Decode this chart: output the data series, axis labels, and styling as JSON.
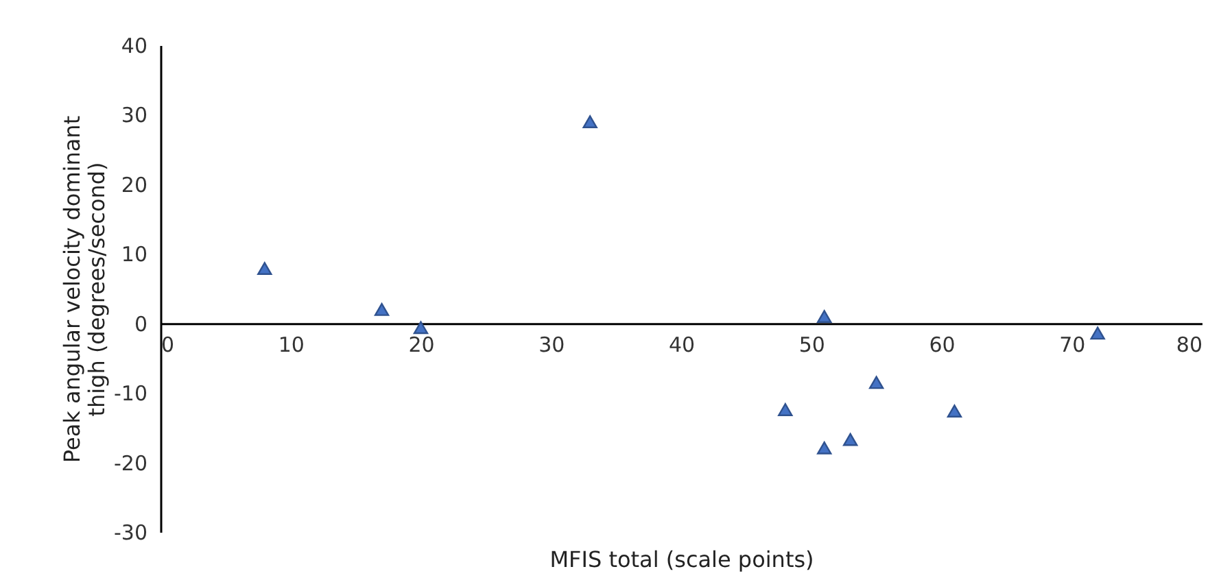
{
  "chart_data": {
    "type": "scatter",
    "xlabel": "MFIS total (scale points)",
    "ylabel": "Peak angular velocity dominant thigh (degrees/second)",
    "x": [
      8,
      17,
      20,
      33,
      48,
      51,
      51,
      53,
      55,
      61,
      72
    ],
    "series": [
      {
        "color": "#4472c4",
        "values": [
          7.9,
          2.0,
          -0.6,
          29.0,
          -12.4,
          1.0,
          -17.9,
          -16.7,
          -8.5,
          -12.6,
          -1.4
        ]
      }
    ],
    "xlim": [
      0,
      80
    ],
    "xticks": [
      0,
      10,
      20,
      30,
      40,
      50,
      60,
      70,
      80
    ],
    "ylim": [
      -30,
      40
    ],
    "yticks": [
      -30,
      -20,
      -10,
      0,
      10,
      20,
      30,
      40
    ],
    "marker": "triangle",
    "grid": false
  }
}
